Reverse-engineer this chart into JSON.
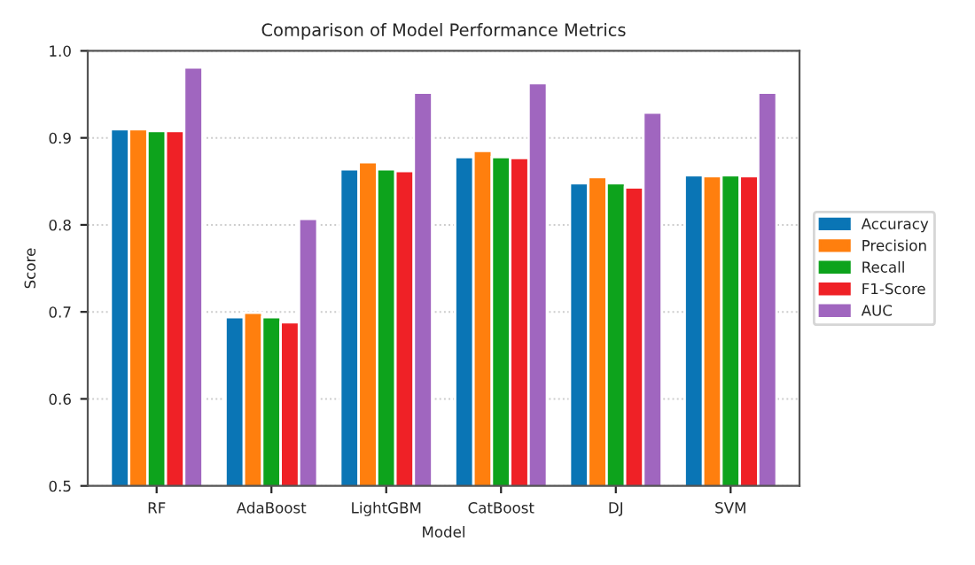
{
  "chart_data": {
    "type": "bar",
    "title": "Comparison of Model Performance Metrics",
    "xlabel": "Model",
    "ylabel": "Score",
    "categories": [
      "RF",
      "AdaBoost",
      "LightGBM",
      "CatBoost",
      "DJ",
      "SVM"
    ],
    "series": [
      {
        "name": "Accuracy",
        "color": "#0a75b5",
        "values": [
          0.91,
          0.694,
          0.864,
          0.878,
          0.848,
          0.857
        ]
      },
      {
        "name": "Precision",
        "color": "#ff7f0e",
        "values": [
          0.91,
          0.699,
          0.872,
          0.885,
          0.855,
          0.856
        ]
      },
      {
        "name": "Recall",
        "color": "#0da31c",
        "values": [
          0.908,
          0.694,
          0.864,
          0.878,
          0.848,
          0.857
        ]
      },
      {
        "name": "F1-Score",
        "color": "#ef2126",
        "values": [
          0.908,
          0.688,
          0.862,
          0.877,
          0.843,
          0.856
        ]
      },
      {
        "name": "AUC",
        "color": "#a066bf",
        "values": [
          0.981,
          0.807,
          0.952,
          0.963,
          0.929,
          0.952
        ]
      }
    ],
    "ylim": [
      0.5,
      1.0
    ],
    "yticks": [
      0.5,
      0.6,
      0.7,
      0.8,
      0.9,
      {
        "value": 1.0,
        "label": "1.0"
      }
    ],
    "grid": "y",
    "legend": "right"
  }
}
